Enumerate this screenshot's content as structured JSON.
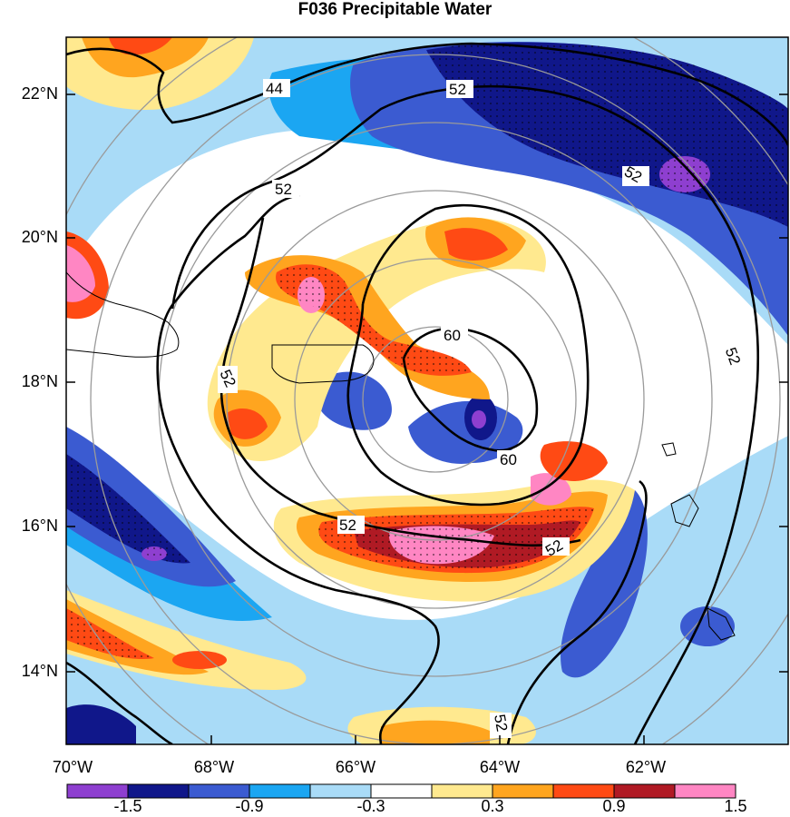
{
  "title": "F036 Precipitable Water",
  "lat_labels": [
    "22°N",
    "20°N",
    "18°N",
    "16°N",
    "14°N"
  ],
  "lon_labels": [
    "70°W",
    "68°W",
    "66°W",
    "64°W",
    "62°W"
  ],
  "colorbar": {
    "labels": [
      "-1.5",
      "-0.9",
      "-0.3",
      "0.3",
      "0.9",
      "1.5"
    ],
    "colors": [
      "#8e3fd0",
      "#10178a",
      "#3b5bd1",
      "#1ba6f2",
      "#a9dbf7",
      "#ffffff",
      "#ffe98f",
      "#ffa51f",
      "#ff4a14",
      "#b01a24",
      "#ff86c3"
    ]
  },
  "contour_labels": [
    "44",
    "52",
    "52",
    "52",
    "52",
    "60",
    "60",
    "52",
    "52",
    "52",
    "52"
  ],
  "map": {
    "lon_range": [
      "70°W",
      "60°W"
    ],
    "lat_range": [
      "13°N",
      "23°N"
    ]
  }
}
